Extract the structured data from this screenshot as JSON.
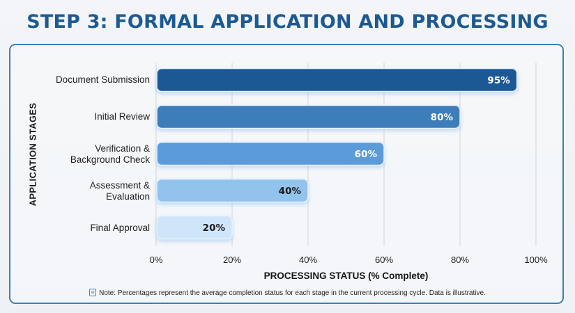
{
  "title": "STEP 3: FORMAL APPLICATION AND PROCESSING",
  "note": "Note: Percentages represent the average completion status for each stage in the current processing cycle. Data is illustrative.",
  "chart_data": {
    "type": "bar",
    "orientation": "horizontal",
    "title": "STEP 3: FORMAL APPLICATION AND PROCESSING",
    "xlabel": "PROCESSING STATUS (% Complete)",
    "ylabel": "APPLICATION STAGES",
    "categories": [
      "Document Submission",
      "Initial Review",
      "Verification &\nBackground Check",
      "Assessment &\nEvaluation",
      "Final Approval"
    ],
    "values": [
      95,
      80,
      60,
      40,
      20
    ],
    "data_labels": [
      "95%",
      "80%",
      "60%",
      "40%",
      "20%"
    ],
    "xlim": [
      0,
      100
    ],
    "xticks": [
      0,
      20,
      40,
      60,
      80,
      100
    ],
    "xtick_labels": [
      "0%",
      "20%",
      "40%",
      "60%",
      "80%",
      "100%"
    ],
    "grid": true,
    "colors": [
      "#1a5894",
      "#3d7eba",
      "#5b9bd9",
      "#92c3ec",
      "#cfe6fa"
    ],
    "label_colors": [
      "#ffffff",
      "#ffffff",
      "#ffffff",
      "#1a1a1a",
      "#1a1a1a"
    ]
  }
}
